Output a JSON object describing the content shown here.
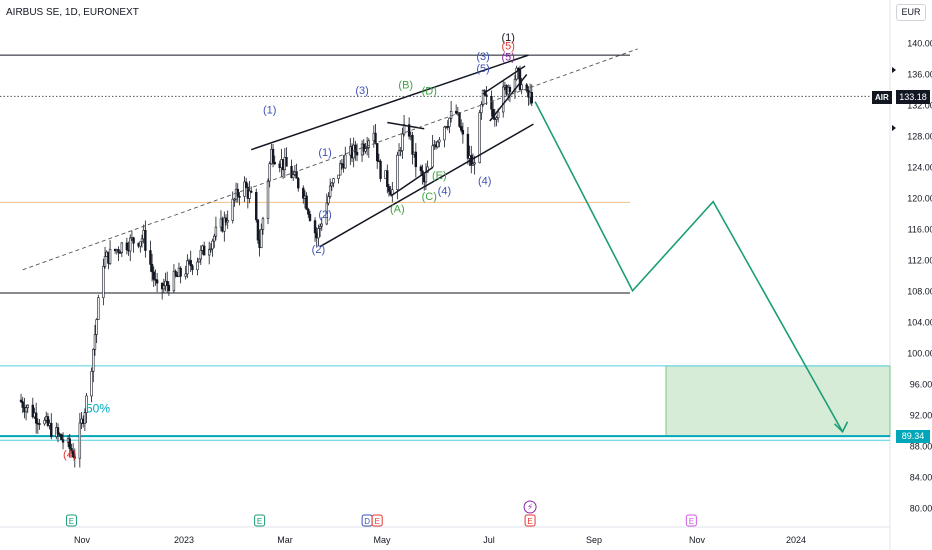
{
  "header": {
    "title": "AIRBUS SE, 1D, EURONEXT",
    "currency": "EUR"
  },
  "price_scale": {
    "symbol": "AIR",
    "last_price": "133.18",
    "level_label": "89.34"
  },
  "chart_data": {
    "type": "line",
    "yticks": [
      80,
      84,
      88,
      92,
      96,
      100,
      104,
      108,
      112,
      116,
      120,
      124,
      128,
      132,
      136,
      140
    ],
    "xticks": [
      "Nov",
      "2023",
      "Mar",
      "May",
      "Jul",
      "Sep",
      "Nov",
      "2024"
    ],
    "horizontal_levels": [
      {
        "price": 138.5,
        "color": "#131722",
        "style": "solid"
      },
      {
        "price": 107.8,
        "color": "#131722",
        "style": "solid"
      },
      {
        "price": 98.4,
        "color": "#4dd0e1",
        "style": "solid"
      },
      {
        "price": 89.34,
        "color": "#00a7b8",
        "style": "solid"
      },
      {
        "price": 88.8,
        "color": "#4dd0e1",
        "style": "solid"
      },
      {
        "price": 119.5,
        "color": "#f5c089",
        "style": "solid"
      },
      {
        "price": 133.18,
        "color": "#555555",
        "style": "dotted"
      }
    ],
    "fib_label": "50%",
    "target_zone": {
      "top": 98.4,
      "bottom": 89.34,
      "color": "#c8e6c9"
    },
    "projection": {
      "color": "#1b9e77",
      "points": [
        {
          "x": "2023-07-29",
          "y": 132.5
        },
        {
          "x": "2023-09-25",
          "y": 108.1
        },
        {
          "x": "2023-11-12",
          "y": 119.6
        },
        {
          "x": "2024-01-28",
          "y": 89.9
        }
      ]
    },
    "wave_labels": [
      {
        "text": "(4)",
        "color": "#e53935",
        "date": "2022-10-25",
        "price": 86.5
      },
      {
        "text": "(1)",
        "color": "#3f51b5",
        "date": "2023-02-21",
        "price": 131.0
      },
      {
        "text": "(2)",
        "color": "#3f51b5",
        "date": "2023-03-22",
        "price": 113.0
      },
      {
        "text": "(3)",
        "color": "#3f51b5",
        "date": "2023-04-17",
        "price": 133.5
      },
      {
        "text": "(1)",
        "color": "#3f51b5",
        "date": "2023-03-26",
        "price": 125.5
      },
      {
        "text": "(2)",
        "color": "#3f51b5",
        "date": "2023-03-26",
        "price": 117.5
      },
      {
        "text": "(B)",
        "color": "#43a047",
        "date": "2023-05-13",
        "price": 134.2
      },
      {
        "text": "(D)",
        "color": "#43a047",
        "date": "2023-05-27",
        "price": 133.4
      },
      {
        "text": "(A)",
        "color": "#43a047",
        "date": "2023-05-08",
        "price": 118.2
      },
      {
        "text": "(C)",
        "color": "#43a047",
        "date": "2023-05-27",
        "price": 119.8
      },
      {
        "text": "(E)",
        "color": "#43a047",
        "date": "2023-06-02",
        "price": 122.5
      },
      {
        "text": "(4)",
        "color": "#3f51b5",
        "date": "2023-06-05",
        "price": 120.5
      },
      {
        "text": "(4)",
        "color": "#3f51b5",
        "date": "2023-06-29",
        "price": 121.8
      },
      {
        "text": "(3)",
        "color": "#3f51b5",
        "date": "2023-06-28",
        "price": 137.9
      },
      {
        "text": "(5)",
        "color": "#3f51b5",
        "date": "2023-06-28",
        "price": 136.3
      },
      {
        "text": "(1)",
        "color": "#131722",
        "date": "2023-07-13",
        "price": 140.3
      },
      {
        "text": "(5)",
        "color": "#e53935",
        "date": "2023-07-13",
        "price": 139.2
      },
      {
        "text": "(5)",
        "color": "#8e24aa",
        "date": "2023-07-13",
        "price": 137.8
      }
    ],
    "trendlines": [
      {
        "from": {
          "date": "2023-02-10",
          "price": 126.3
        },
        "to": {
          "date": "2023-07-25",
          "price": 138.5
        }
      },
      {
        "from": {
          "date": "2023-03-23",
          "price": 113.8
        },
        "to": {
          "date": "2023-07-28",
          "price": 129.6
        }
      },
      {
        "from": {
          "date": "2023-05-02",
          "price": 129.8
        },
        "to": {
          "date": "2023-05-24",
          "price": 129.0
        }
      },
      {
        "from": {
          "date": "2023-05-04",
          "price": 120.3
        },
        "to": {
          "date": "2023-05-29",
          "price": 124.0
        }
      },
      {
        "from": {
          "date": "2023-06-28",
          "price": 133.5
        },
        "to": {
          "date": "2023-07-23",
          "price": 137.1
        }
      },
      {
        "from": {
          "date": "2023-07-02",
          "price": 130.0
        },
        "to": {
          "date": "2023-07-24",
          "price": 136.0
        }
      },
      {
        "from": {
          "date": "2022-09-27",
          "price": 110.8
        },
        "to": {
          "date": "2023-09-28",
          "price": 139.3
        },
        "dashed": true
      }
    ],
    "events": [
      {
        "glyph": "E",
        "date": "2022-10-26",
        "color": "#1e9e76"
      },
      {
        "glyph": "E",
        "date": "2023-02-15",
        "color": "#1e9e76"
      },
      {
        "glyph": "D",
        "date": "2023-04-20",
        "color": "#3f51b5"
      },
      {
        "glyph": "E",
        "date": "2023-04-26",
        "color": "#e53935"
      },
      {
        "glyph": "E",
        "date": "2023-07-26",
        "color": "#e53935"
      },
      {
        "glyph": "E",
        "date": "2023-10-30",
        "color": "#d05ce3"
      }
    ]
  }
}
